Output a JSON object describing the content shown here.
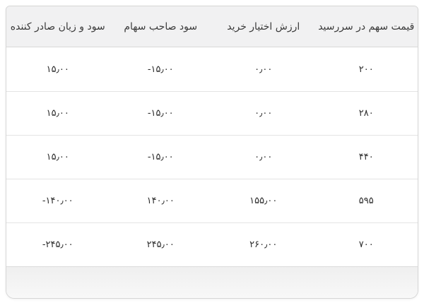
{
  "table": {
    "headers": [
      "قیمت سهم در سررسید",
      "ارزش اختیار خرید",
      "سود صاحب سهام",
      "سود و زیان صادر کننده"
    ],
    "rows": [
      [
        "۲۰۰",
        "۰٫۰۰",
        "-۱۵٫۰۰",
        "۱۵٫۰۰"
      ],
      [
        "۲۸۰",
        "۰٫۰۰",
        "-۱۵٫۰۰",
        "۱۵٫۰۰"
      ],
      [
        "۴۴۰",
        "۰٫۰۰",
        "-۱۵٫۰۰",
        "۱۵٫۰۰"
      ],
      [
        "۵۹۵",
        "۱۵۵٫۰۰",
        "۱۴۰٫۰۰",
        "-۱۴۰٫۰۰"
      ],
      [
        "۷۰۰",
        "۲۶۰٫۰۰",
        "۲۴۵٫۰۰",
        "-۲۴۵٫۰۰"
      ]
    ]
  },
  "colors": {
    "header_background": "#f1f1f2",
    "card_border": "#d6d6d6",
    "row_divider": "#e4e4e4",
    "header_text": "#3b3b3b",
    "cell_text": "#2e2e2e",
    "footer_gradient_top": "#efefef",
    "footer_gradient_bottom": "#f8f8f8"
  }
}
